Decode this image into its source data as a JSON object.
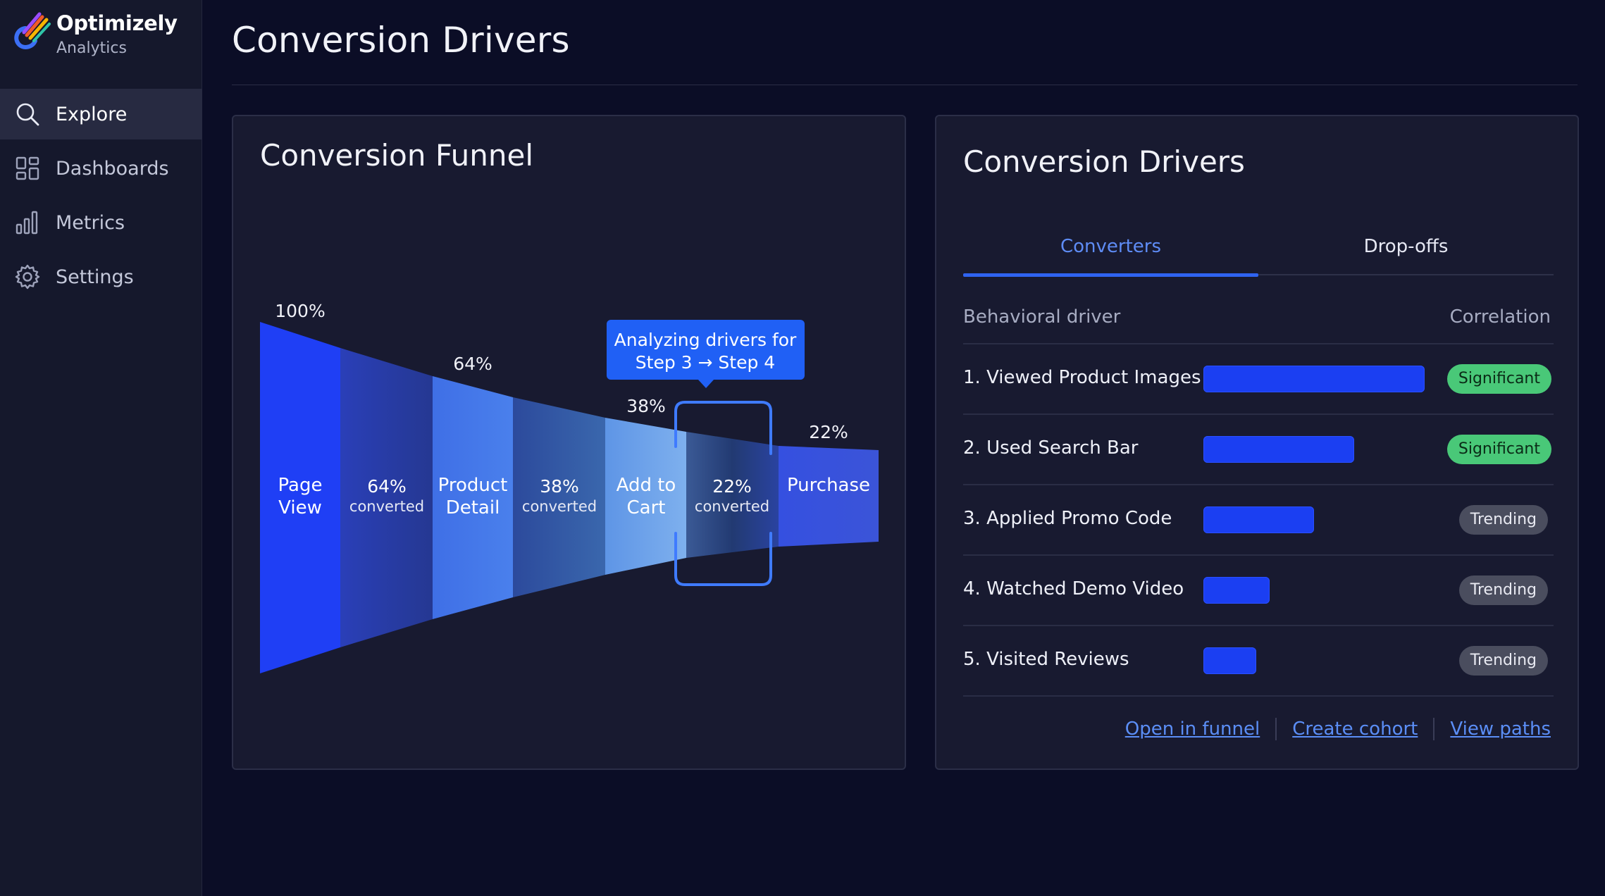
{
  "brand": {
    "name": "Optimizely",
    "sub": "Analytics"
  },
  "nav": [
    {
      "label": "Explore",
      "icon": "search-icon",
      "active": true
    },
    {
      "label": "Dashboards",
      "icon": "dashboard-icon",
      "active": false
    },
    {
      "label": "Metrics",
      "icon": "bar-chart-icon",
      "active": false
    },
    {
      "label": "Settings",
      "icon": "gear-icon",
      "active": false
    }
  ],
  "page": {
    "title": "Conversion Drivers"
  },
  "funnel": {
    "title": "Conversion Funnel",
    "tooltip": {
      "line1": "Analyzing drivers for",
      "line2": "Step 3 → Step 4"
    },
    "steps": [
      {
        "line1": "Page",
        "line2": "View",
        "pct": "100%"
      },
      {
        "line1": "Product",
        "line2": "Detail",
        "pct": "64%"
      },
      {
        "line1": "Add to",
        "line2": "Cart",
        "pct": "38%"
      },
      {
        "line1": "Purchase",
        "line2": "",
        "pct": "22%"
      }
    ],
    "transitions": [
      {
        "pct": "64%",
        "label": "converted"
      },
      {
        "pct": "38%",
        "label": "converted"
      },
      {
        "pct": "22%",
        "label": "converted"
      }
    ]
  },
  "chart_data": {
    "type": "funnel",
    "title": "Conversion Funnel",
    "categories": [
      "Page View",
      "Product Detail",
      "Add to Cart",
      "Purchase"
    ],
    "values": [
      100,
      64,
      38,
      22
    ],
    "unit": "%",
    "highlighted_transition": "Step 3 → Step 4"
  },
  "drivers": {
    "title": "Conversion Drivers",
    "tabs": [
      {
        "label": "Converters",
        "active": true
      },
      {
        "label": "Drop-offs",
        "active": false
      }
    ],
    "columns": {
      "driver": "Behavioral driver",
      "correlation": "Correlation"
    },
    "rows": [
      {
        "label": "1. Viewed Product Images",
        "strength": 1.0,
        "badge": "Significant",
        "level": "sig"
      },
      {
        "label": "2. Used Search Bar",
        "strength": 0.68,
        "badge": "Significant",
        "level": "sig"
      },
      {
        "label": "3. Applied Promo Code",
        "strength": 0.5,
        "badge": "Trending",
        "level": "trend"
      },
      {
        "label": "4. Watched Demo Video",
        "strength": 0.3,
        "badge": "Trending",
        "level": "trend"
      },
      {
        "label": "5. Visited Reviews",
        "strength": 0.24,
        "badge": "Trending",
        "level": "trend"
      }
    ],
    "links": {
      "open": "Open in funnel",
      "cohort": "Create cohort",
      "paths": "View paths"
    }
  },
  "colors": {
    "accent": "#2f63f0",
    "significant": "#49c878",
    "trending": "#4a4d5e",
    "bar": "#1b3ff2"
  }
}
